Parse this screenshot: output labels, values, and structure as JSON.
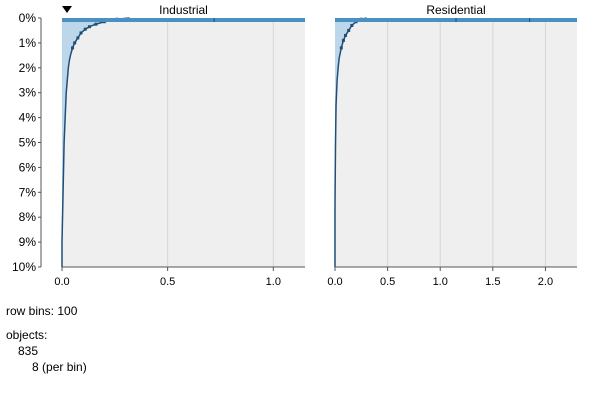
{
  "chart_data": {
    "type": "area",
    "y_axis": {
      "ticks": [
        "0%",
        "1%",
        "2%",
        "3%",
        "4%",
        "5%",
        "6%",
        "7%",
        "8%",
        "9%",
        "10%"
      ],
      "range": [
        0,
        10
      ],
      "unit": "%",
      "inverted": true
    },
    "panels": [
      {
        "title": "Industrial",
        "sorted_indicator": true,
        "x_ticks": [
          "0.0",
          "0.5",
          "1.0"
        ],
        "xlim": [
          0,
          1.15
        ],
        "grid": true,
        "bar_color": "#4a90c2",
        "fill_color": "#bcd7ea",
        "line_color": "#1f4e79",
        "curve": [
          [
            0.0,
            10.0
          ],
          [
            0.0,
            9.0
          ],
          [
            0.005,
            7.0
          ],
          [
            0.01,
            5.0
          ],
          [
            0.015,
            4.0
          ],
          [
            0.02,
            3.0
          ],
          [
            0.025,
            2.5
          ],
          [
            0.03,
            2.0
          ],
          [
            0.035,
            1.7
          ],
          [
            0.04,
            1.5
          ],
          [
            0.05,
            1.2
          ],
          [
            0.06,
            1.0
          ],
          [
            0.075,
            0.8
          ],
          [
            0.09,
            0.6
          ],
          [
            0.11,
            0.45
          ],
          [
            0.13,
            0.35
          ],
          [
            0.16,
            0.25
          ],
          [
            0.2,
            0.15
          ],
          [
            0.26,
            0.05
          ],
          [
            0.32,
            0.0
          ],
          [
            1.15,
            0.0
          ]
        ],
        "top_markers": [
          0.72
        ]
      },
      {
        "title": "Residential",
        "sorted_indicator": false,
        "x_ticks": [
          "0.0",
          "0.5",
          "1.0",
          "1.5",
          "2.0"
        ],
        "xlim": [
          0,
          2.3
        ],
        "grid": true,
        "bar_color": "#4a90c2",
        "fill_color": "#bcd7ea",
        "line_color": "#1f4e79",
        "curve": [
          [
            0.0,
            10.0
          ],
          [
            0.0,
            7.5
          ],
          [
            0.005,
            5.0
          ],
          [
            0.01,
            3.5
          ],
          [
            0.02,
            2.5
          ],
          [
            0.03,
            2.0
          ],
          [
            0.04,
            1.6
          ],
          [
            0.06,
            1.2
          ],
          [
            0.08,
            0.9
          ],
          [
            0.1,
            0.7
          ],
          [
            0.13,
            0.5
          ],
          [
            0.16,
            0.3
          ],
          [
            0.2,
            0.15
          ],
          [
            0.25,
            0.05
          ],
          [
            0.3,
            0.0
          ],
          [
            2.3,
            0.0
          ]
        ],
        "top_markers": [
          1.15,
          1.85
        ]
      }
    ]
  },
  "info": {
    "row_bins_label": "row bins:",
    "row_bins_value": "100",
    "objects_label": "objects:",
    "objects_value": "835",
    "per_bin_value": "8",
    "per_bin_label": "(per bin)"
  }
}
